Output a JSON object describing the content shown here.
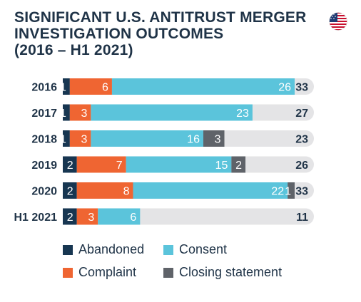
{
  "title_lines": [
    "SIGNIFICANT U.S. ANTITRUST MERGER",
    "INVESTIGATION OUTCOMES",
    "(2016 – H1 2021)"
  ],
  "flag": "us-flag-icon",
  "chart_data": {
    "type": "bar",
    "orientation": "horizontal",
    "stacked": true,
    "title": "SIGNIFICANT U.S. ANTITRUST MERGER INVESTIGATION OUTCOMES (2016 – H1 2021)",
    "categories": [
      "2016",
      "2017",
      "2018",
      "2019",
      "2020",
      "H1 2021"
    ],
    "series": [
      {
        "name": "Abandoned",
        "color": "#173651",
        "values": [
          1,
          1,
          1,
          2,
          2,
          2
        ]
      },
      {
        "name": "Complaint",
        "color": "#ef6532",
        "values": [
          6,
          3,
          3,
          7,
          8,
          3
        ]
      },
      {
        "name": "Consent",
        "color": "#5bc4db",
        "values": [
          26,
          23,
          16,
          15,
          22,
          6
        ]
      },
      {
        "name": "Closing statement",
        "color": "#5f6369",
        "values": [
          0,
          0,
          3,
          2,
          1,
          0
        ]
      }
    ],
    "totals": [
      33,
      27,
      23,
      26,
      33,
      11
    ],
    "xlim": [
      0,
      33
    ],
    "track_color": "#e4e4e6",
    "grid": false,
    "legend_position": "bottom"
  },
  "legend": [
    {
      "label": "Abandoned",
      "color": "#173651"
    },
    {
      "label": "Consent",
      "color": "#5bc4db"
    },
    {
      "label": "Complaint",
      "color": "#ef6532"
    },
    {
      "label": "Closing statement",
      "color": "#5f6369"
    }
  ]
}
